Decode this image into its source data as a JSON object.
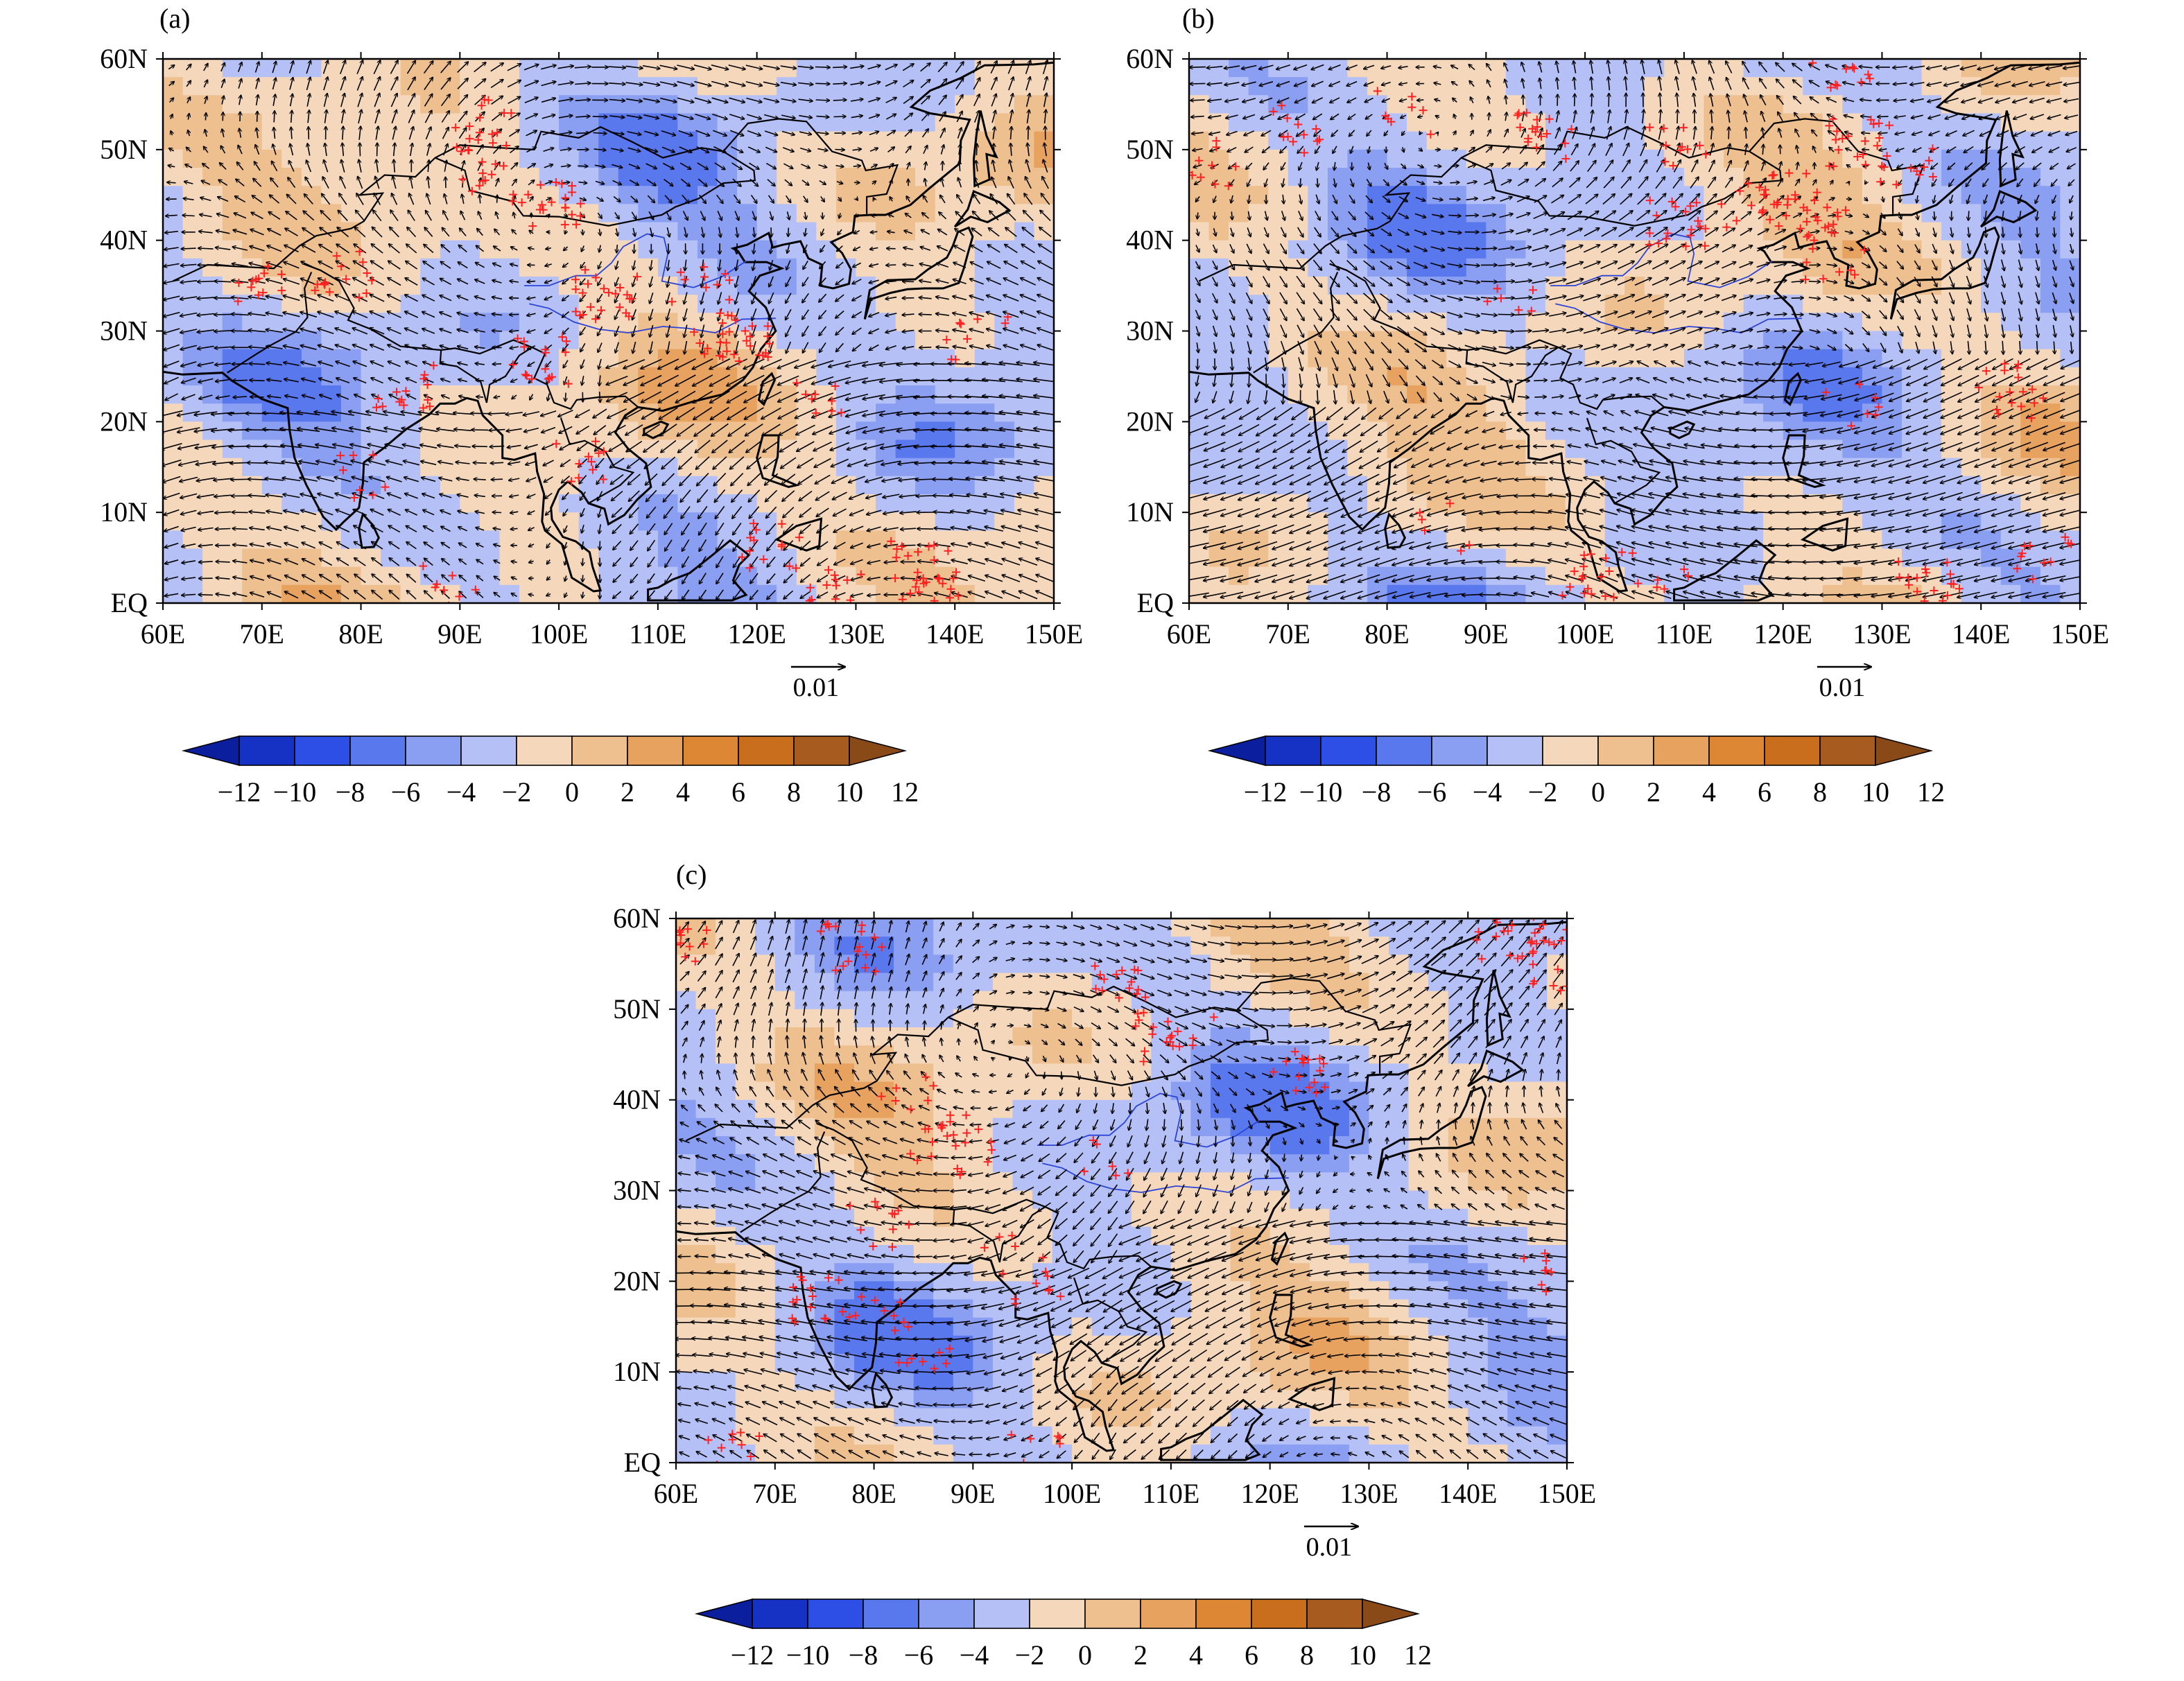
{
  "panels": [
    {
      "id": "a",
      "label": "(a)",
      "seed": 11
    },
    {
      "id": "b",
      "label": "(b)",
      "seed": 37
    },
    {
      "id": "c",
      "label": "(c)",
      "seed": 73
    }
  ],
  "axes": {
    "x_ticks": [
      "60E",
      "70E",
      "80E",
      "90E",
      "100E",
      "110E",
      "120E",
      "130E",
      "140E",
      "150E"
    ],
    "y_ticks": [
      "EQ",
      "10N",
      "20N",
      "30N",
      "40N",
      "50N",
      "60N"
    ],
    "lon_range": [
      60,
      150
    ],
    "lat_range": [
      0,
      60
    ]
  },
  "reference_vector": {
    "label": "0.01"
  },
  "colorbar": {
    "labels": [
      "−12",
      "−10",
      "−8",
      "−6",
      "−4",
      "−2",
      "0",
      "2",
      "4",
      "6",
      "8",
      "10",
      "12"
    ],
    "colors": [
      "#0b1f9e",
      "#1632c4",
      "#2e4fe6",
      "#5a78ee",
      "#8a9ef2",
      "#b5c1f6",
      "#f5d8bc",
      "#eebf8f",
      "#e7a260",
      "#dd8634",
      "#c96e1c",
      "#a85b1e",
      "#8a4a18"
    ]
  },
  "colors": {
    "vector": "#000000",
    "coast": "#000000",
    "river": "#2b44d6",
    "significance": "#ff2020"
  }
}
